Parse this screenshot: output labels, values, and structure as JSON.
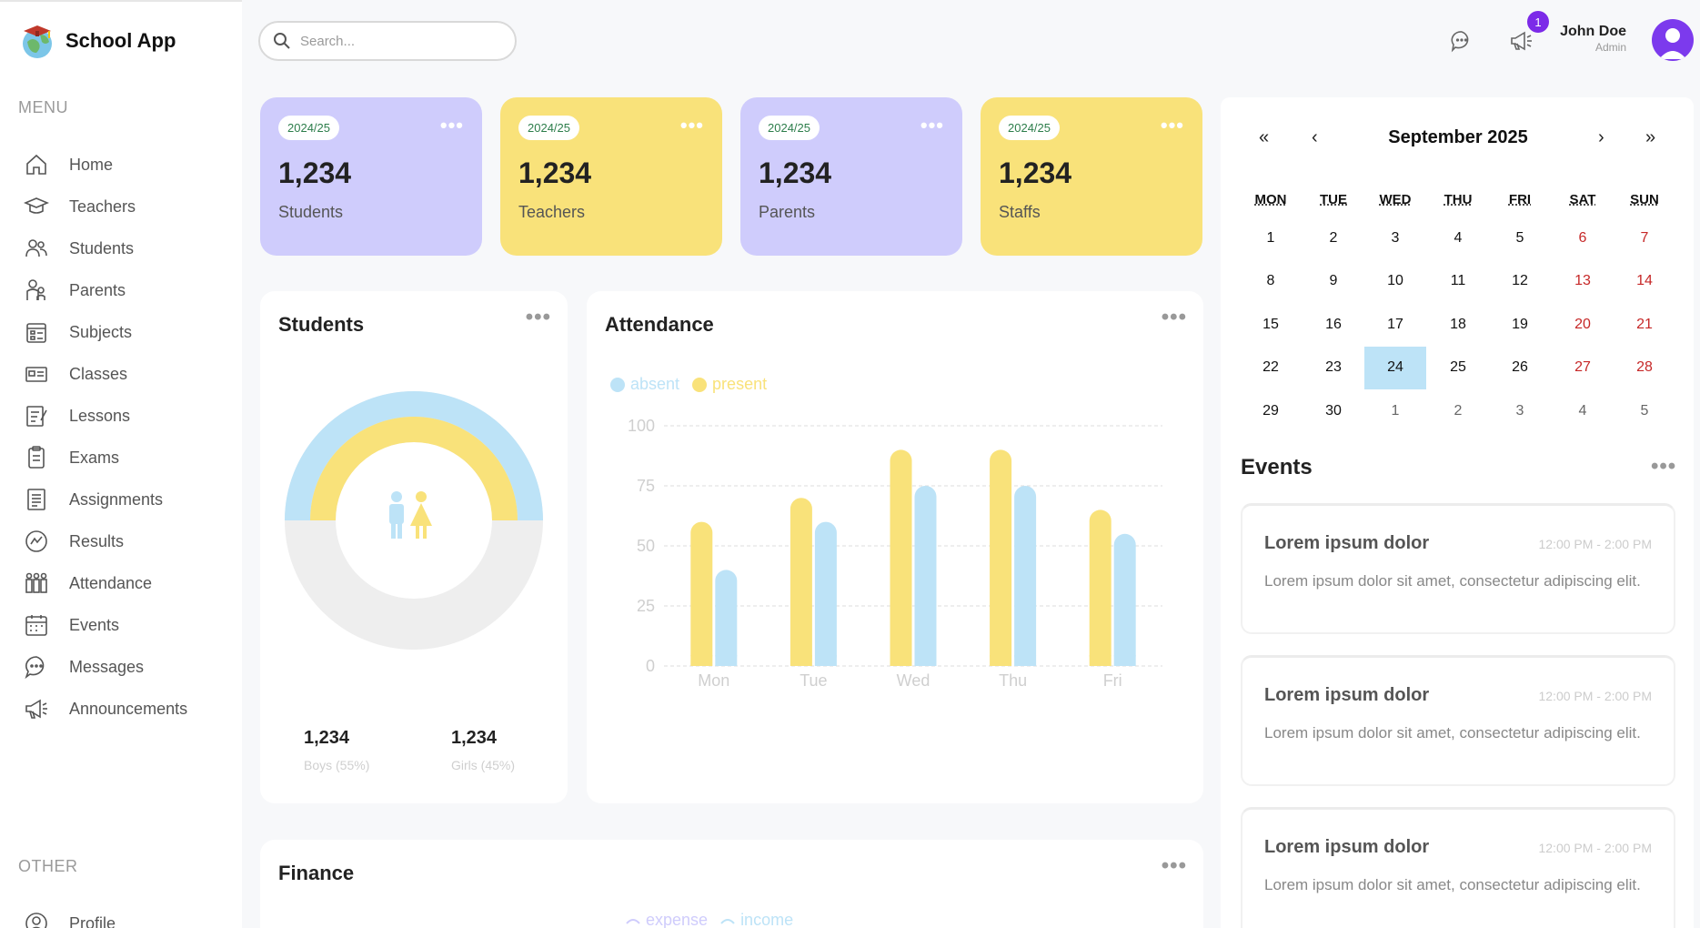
{
  "app": {
    "name": "School App"
  },
  "sidebar": {
    "menu_label": "MENU",
    "other_label": "OTHER",
    "items": [
      {
        "label": "Home",
        "icon": "home-icon"
      },
      {
        "label": "Teachers",
        "icon": "teacher-icon"
      },
      {
        "label": "Students",
        "icon": "students-icon"
      },
      {
        "label": "Parents",
        "icon": "parents-icon"
      },
      {
        "label": "Subjects",
        "icon": "subjects-icon"
      },
      {
        "label": "Classes",
        "icon": "classes-icon"
      },
      {
        "label": "Lessons",
        "icon": "lessons-icon"
      },
      {
        "label": "Exams",
        "icon": "exams-icon"
      },
      {
        "label": "Assignments",
        "icon": "assignments-icon"
      },
      {
        "label": "Results",
        "icon": "results-icon"
      },
      {
        "label": "Attendance",
        "icon": "attendance-icon"
      },
      {
        "label": "Events",
        "icon": "events-icon"
      },
      {
        "label": "Messages",
        "icon": "messages-icon"
      },
      {
        "label": "Announcements",
        "icon": "announcements-icon"
      }
    ],
    "other_items": [
      {
        "label": "Profile",
        "icon": "profile-icon"
      }
    ]
  },
  "header": {
    "search_placeholder": "Search...",
    "notification_count": "1",
    "user_name": "John Doe",
    "user_role": "Admin"
  },
  "stats": [
    {
      "year": "2024/25",
      "value": "1,234",
      "label": "Students",
      "color": "#cfccfc"
    },
    {
      "year": "2024/25",
      "value": "1,234",
      "label": "Teachers",
      "color": "#f9e27a"
    },
    {
      "year": "2024/25",
      "value": "1,234",
      "label": "Parents",
      "color": "#cfccfc"
    },
    {
      "year": "2024/25",
      "value": "1,234",
      "label": "Staffs",
      "color": "#f9e27a"
    }
  ],
  "students_panel": {
    "title": "Students",
    "boys_value": "1,234",
    "boys_label": "Boys (55%)",
    "girls_value": "1,234",
    "girls_label": "Girls (45%)",
    "boys_fraction": 0.55,
    "girls_fraction": 0.45,
    "colors": {
      "boys": "#bde3f7",
      "girls": "#f9e27a",
      "track": "#eeeeee"
    }
  },
  "attendance_panel": {
    "title": "Attendance",
    "legend": [
      {
        "name": "absent",
        "color": "#bde3f7"
      },
      {
        "name": "present",
        "color": "#f9e27a"
      }
    ]
  },
  "chart_data": {
    "type": "bar",
    "categories": [
      "Mon",
      "Tue",
      "Wed",
      "Thu",
      "Fri"
    ],
    "series": [
      {
        "name": "present",
        "values": [
          60,
          70,
          90,
          90,
          65
        ],
        "color": "#f9e27a"
      },
      {
        "name": "absent",
        "values": [
          40,
          60,
          75,
          75,
          55
        ],
        "color": "#bde3f7"
      }
    ],
    "yticks": [
      0,
      25,
      50,
      75,
      100
    ],
    "ylim": [
      0,
      100
    ],
    "grid": true,
    "legend_position": "top-left"
  },
  "finance_panel": {
    "title": "Finance",
    "legend": [
      {
        "name": "expense",
        "color": "#cfccfc"
      },
      {
        "name": "income",
        "color": "#bde3f7"
      }
    ]
  },
  "calendar": {
    "month": "September 2025",
    "nav": {
      "prev_year": "«",
      "prev": "‹",
      "next": "›",
      "next_year": "»"
    },
    "weekdays": [
      "MON",
      "TUE",
      "WED",
      "THU",
      "FRI",
      "SAT",
      "SUN"
    ],
    "weeks": [
      [
        "1",
        "2",
        "3",
        "4",
        "5",
        "6",
        "7"
      ],
      [
        "8",
        "9",
        "10",
        "11",
        "12",
        "13",
        "14"
      ],
      [
        "15",
        "16",
        "17",
        "18",
        "19",
        "20",
        "21"
      ],
      [
        "22",
        "23",
        "24",
        "25",
        "26",
        "27",
        "28"
      ],
      [
        "29",
        "30",
        "1",
        "2",
        "3",
        "4",
        "5"
      ]
    ],
    "today": "24"
  },
  "events": {
    "title": "Events",
    "items": [
      {
        "title": "Lorem ipsum dolor",
        "time": "12:00 PM - 2:00 PM",
        "description": "Lorem ipsum dolor sit amet, consectetur adipiscing elit."
      },
      {
        "title": "Lorem ipsum dolor",
        "time": "12:00 PM - 2:00 PM",
        "description": "Lorem ipsum dolor sit amet, consectetur adipiscing elit."
      },
      {
        "title": "Lorem ipsum dolor",
        "time": "12:00 PM - 2:00 PM",
        "description": "Lorem ipsum dolor sit amet, consectetur adipiscing elit."
      }
    ]
  }
}
